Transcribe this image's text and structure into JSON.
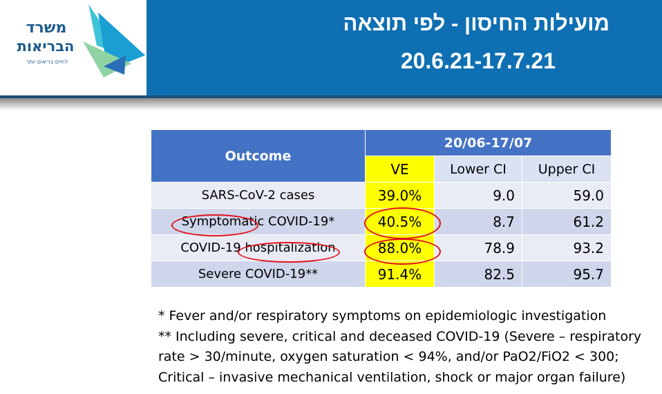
{
  "header": {
    "logo": {
      "line1": "משרד",
      "line2": "הבריאות",
      "tagline": "לחיים בריאים יותר"
    },
    "title": "מועילות החיסון - לפי תוצאה",
    "date_range": "20.6.21-17.7.21"
  },
  "table": {
    "outcome_header": "Outcome",
    "period_header": "20/06-17/07",
    "column_headers": [
      "VE",
      "Lower CI",
      "Upper CI"
    ],
    "rows": [
      {
        "outcome": "SARS-CoV-2 cases",
        "ve": "39.0%",
        "lower_ci": "9.0",
        "upper_ci": "59.0"
      },
      {
        "outcome": "Symptomatic COVID-19*",
        "ve": "40.5%",
        "lower_ci": "8.7",
        "upper_ci": "61.2"
      },
      {
        "outcome": "COVID-19 hospitalization",
        "ve": "88.0%",
        "lower_ci": "78.9",
        "upper_ci": "93.2"
      },
      {
        "outcome": "Severe COVID-19**",
        "ve": "91.4%",
        "lower_ci": "82.5",
        "upper_ci": "95.7"
      }
    ]
  },
  "footnotes": [
    "* Fever and/or respiratory symptoms on epidemiologic investigation",
    "** Including severe, critical and deceased COVID-19 (Severe – respiratory",
    "rate > 30/minute, oxygen saturation < 94%, and/or PaO2/FiO2 < 300;",
    "Critical – invasive mechanical ventilation, shock or major organ failure)"
  ],
  "colors": {
    "header_blue": "#0e6fb3",
    "table_header_blue": "#4472c4",
    "ve_highlight": "#ffff00",
    "annotation_red": "#e0111a"
  }
}
